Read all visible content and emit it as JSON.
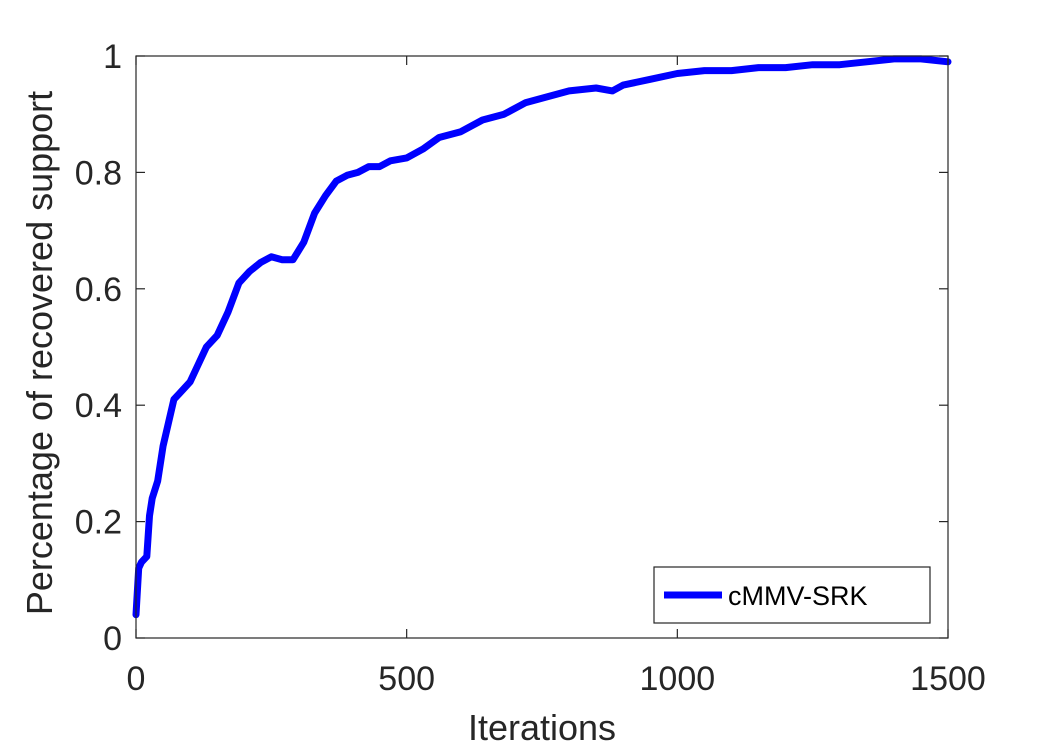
{
  "chart_data": {
    "type": "line",
    "xlabel": "Iterations",
    "ylabel": "Percentage of recovered support",
    "xlim": [
      0,
      1500
    ],
    "ylim": [
      0,
      1
    ],
    "xticks": [
      0,
      500,
      1000,
      1500
    ],
    "yticks": [
      0,
      0.2,
      0.4,
      0.6,
      0.8,
      1
    ],
    "xtick_labels": [
      "0",
      "500",
      "1000",
      "1500"
    ],
    "ytick_labels": [
      "0",
      "0.2",
      "0.4",
      "0.6",
      "0.8",
      "1"
    ],
    "grid": false,
    "legend_position": "bottom-right",
    "line_color": "#0000ff",
    "series": [
      {
        "name": "cMMV-SRK",
        "x": [
          0,
          5,
          10,
          20,
          25,
          30,
          40,
          50,
          60,
          70,
          80,
          90,
          100,
          110,
          130,
          150,
          170,
          190,
          210,
          230,
          250,
          270,
          290,
          310,
          330,
          350,
          370,
          390,
          410,
          430,
          450,
          470,
          500,
          530,
          560,
          600,
          640,
          680,
          720,
          760,
          800,
          850,
          880,
          900,
          950,
          1000,
          1050,
          1100,
          1150,
          1200,
          1250,
          1300,
          1350,
          1400,
          1450,
          1500
        ],
        "values": [
          0.04,
          0.12,
          0.13,
          0.14,
          0.21,
          0.24,
          0.27,
          0.33,
          0.37,
          0.41,
          0.42,
          0.43,
          0.44,
          0.46,
          0.5,
          0.52,
          0.56,
          0.61,
          0.63,
          0.645,
          0.655,
          0.65,
          0.65,
          0.68,
          0.73,
          0.76,
          0.785,
          0.795,
          0.8,
          0.81,
          0.81,
          0.82,
          0.825,
          0.84,
          0.86,
          0.87,
          0.89,
          0.9,
          0.92,
          0.93,
          0.94,
          0.945,
          0.94,
          0.95,
          0.96,
          0.97,
          0.975,
          0.975,
          0.98,
          0.98,
          0.985,
          0.985,
          0.99,
          0.995,
          0.995,
          0.99
        ]
      }
    ]
  }
}
